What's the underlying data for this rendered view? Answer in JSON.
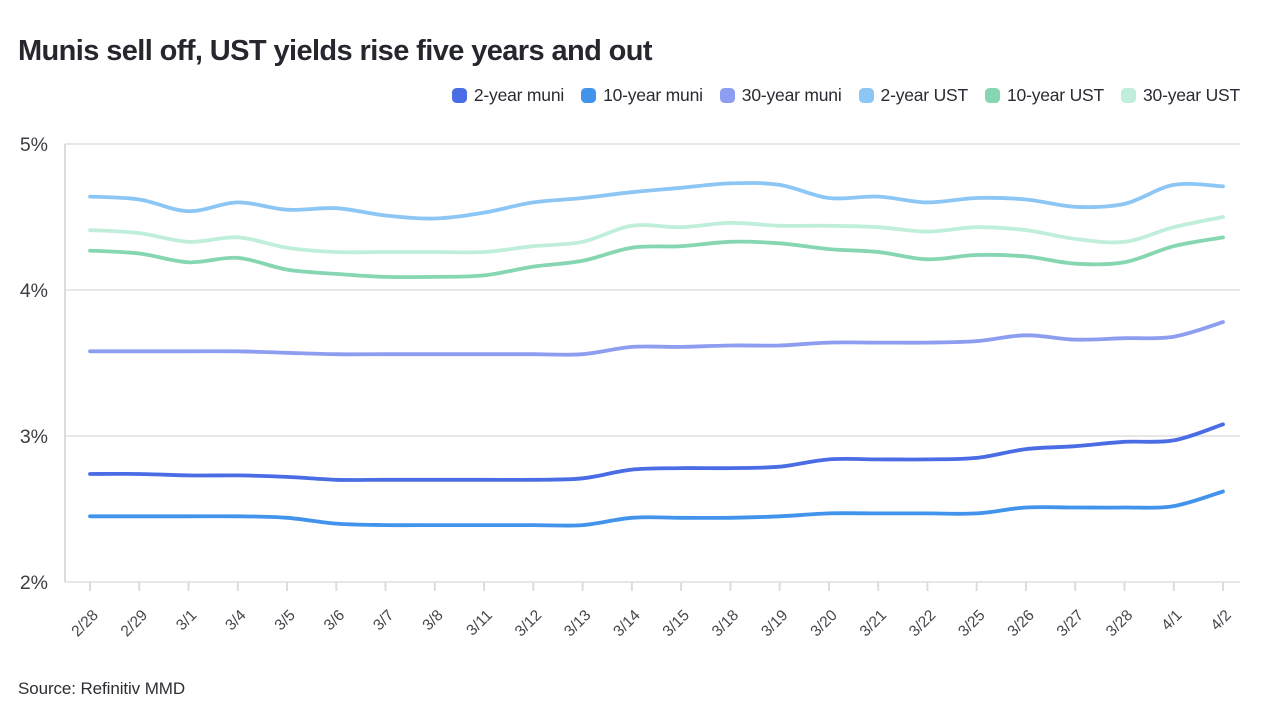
{
  "title": "Munis sell off, UST yields rise five years and out",
  "source": "Source: Refinitiv MMD",
  "colors": {
    "grid": "#e7e7ea",
    "axis": "#dcdce0",
    "ytick_text": "#3d3d44",
    "xtick_text": "#45454c"
  },
  "chart_data": {
    "type": "line",
    "title": "Munis sell off, UST yields rise five years and out",
    "xlabel": "",
    "ylabel": "",
    "ylim": [
      2,
      5
    ],
    "grid": "horizontal",
    "legend_position": "top-right",
    "yticks": [
      {
        "value": 5,
        "label": "5%"
      },
      {
        "value": 4,
        "label": "4%"
      },
      {
        "value": 3,
        "label": "3%"
      },
      {
        "value": 2,
        "label": "2%"
      }
    ],
    "x": [
      "2/28",
      "2/29",
      "3/1",
      "3/4",
      "3/5",
      "3/6",
      "3/7",
      "3/8",
      "3/11",
      "3/12",
      "3/13",
      "3/14",
      "3/15",
      "3/18",
      "3/19",
      "3/20",
      "3/21",
      "3/22",
      "3/25",
      "3/26",
      "3/27",
      "3/28",
      "4/1",
      "4/2"
    ],
    "series": [
      {
        "name": "2-year muni",
        "color": "#4a6ce4",
        "values": [
          2.74,
          2.74,
          2.73,
          2.73,
          2.72,
          2.7,
          2.7,
          2.7,
          2.7,
          2.7,
          2.71,
          2.77,
          2.78,
          2.78,
          2.79,
          2.84,
          2.84,
          2.84,
          2.85,
          2.91,
          2.93,
          2.96,
          2.97,
          3.08
        ]
      },
      {
        "name": "10-year muni",
        "color": "#4193ec",
        "values": [
          2.45,
          2.45,
          2.45,
          2.45,
          2.44,
          2.4,
          2.39,
          2.39,
          2.39,
          2.39,
          2.39,
          2.44,
          2.44,
          2.44,
          2.45,
          2.47,
          2.47,
          2.47,
          2.47,
          2.51,
          2.51,
          2.51,
          2.52,
          2.62
        ]
      },
      {
        "name": "30-year muni",
        "color": "#8d9df0",
        "values": [
          3.58,
          3.58,
          3.58,
          3.58,
          3.57,
          3.56,
          3.56,
          3.56,
          3.56,
          3.56,
          3.56,
          3.61,
          3.61,
          3.62,
          3.62,
          3.64,
          3.64,
          3.64,
          3.65,
          3.69,
          3.66,
          3.67,
          3.68,
          3.78
        ]
      },
      {
        "name": "2-year UST",
        "color": "#8cc6f5",
        "values": [
          4.64,
          4.62,
          4.54,
          4.6,
          4.55,
          4.56,
          4.51,
          4.49,
          4.53,
          4.6,
          4.63,
          4.67,
          4.7,
          4.73,
          4.72,
          4.63,
          4.64,
          4.6,
          4.63,
          4.62,
          4.57,
          4.59,
          4.72,
          4.71
        ]
      },
      {
        "name": "10-year UST",
        "color": "#85d6b1",
        "values": [
          4.27,
          4.25,
          4.19,
          4.22,
          4.14,
          4.11,
          4.09,
          4.09,
          4.1,
          4.16,
          4.2,
          4.29,
          4.3,
          4.33,
          4.32,
          4.28,
          4.26,
          4.21,
          4.24,
          4.23,
          4.18,
          4.19,
          4.3,
          4.36
        ]
      },
      {
        "name": "30-year UST",
        "color": "#bfeeda",
        "values": [
          4.41,
          4.39,
          4.33,
          4.36,
          4.29,
          4.26,
          4.26,
          4.26,
          4.26,
          4.3,
          4.33,
          4.44,
          4.43,
          4.46,
          4.44,
          4.44,
          4.43,
          4.4,
          4.43,
          4.41,
          4.35,
          4.33,
          4.43,
          4.5
        ]
      }
    ]
  }
}
